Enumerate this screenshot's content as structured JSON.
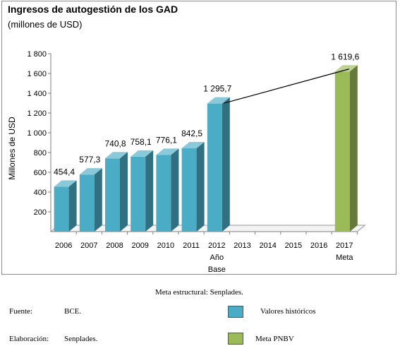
{
  "chart_data": {
    "type": "bar",
    "title": "Ingresos de autogestión de los GAD",
    "subtitle": "(millones de USD)",
    "ylabel": "Millones de USD",
    "xlabel": "",
    "ylim": [
      0,
      1800
    ],
    "y_ticks": [
      "200",
      "400",
      "600",
      "800",
      "1 000",
      "1 200",
      "1 400",
      "1 600",
      "1 800"
    ],
    "y_tick_values": [
      200,
      400,
      600,
      800,
      1000,
      1200,
      1400,
      1600,
      1800
    ],
    "grid": false,
    "three_d": true,
    "categories": [
      "2006",
      "2007",
      "2008",
      "2009",
      "2010",
      "2011",
      "2012",
      "2013",
      "2014",
      "2015",
      "2016",
      "2017"
    ],
    "category_sublabels": {
      "2012": [
        "Año",
        "Base"
      ],
      "2017": [
        "Meta"
      ]
    },
    "series": [
      {
        "name": "Valores históricos",
        "color": "#4bacc6",
        "values": [
          454.4,
          577.3,
          740.8,
          758.1,
          776.1,
          842.5,
          1295.7,
          null,
          null,
          null,
          null,
          null
        ],
        "labels": [
          "454,4",
          "577,3",
          "740,8",
          "758,1",
          "776,1",
          "842,5",
          "1 295,7",
          "",
          "",
          "",
          "",
          ""
        ]
      },
      {
        "name": "Meta PNBV",
        "color": "#9bbb59",
        "values": [
          null,
          null,
          null,
          null,
          null,
          null,
          null,
          null,
          null,
          null,
          null,
          1619.6
        ],
        "labels": [
          "",
          "",
          "",
          "",
          "",
          "",
          "",
          "",
          "",
          "",
          "",
          "1 619,6"
        ]
      }
    ],
    "annotations": [
      {
        "type": "line",
        "from_category": "2012",
        "to_category": "2017"
      }
    ]
  },
  "footer": {
    "meta_estructural": "Meta estructural: Senplades.",
    "fuente_label": "Fuente:",
    "fuente_value": "BCE.",
    "elaboracion_label": "Elaboración:",
    "elaboracion_value": "Senplades."
  },
  "legend": [
    {
      "label": "Valores históricos",
      "color": "#4bacc6"
    },
    {
      "label": "Meta PNBV",
      "color": "#9bbb59"
    }
  ]
}
